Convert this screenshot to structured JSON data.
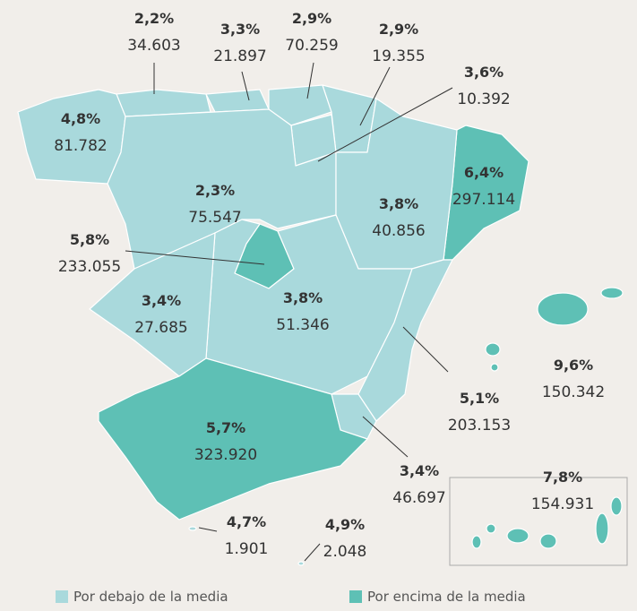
{
  "legend": [
    {
      "name": "Por debajo de la media",
      "color": "#a9d9dc"
    },
    {
      "name": "Por encima de la media",
      "color": "#5ec0b5"
    }
  ],
  "regions": [
    {
      "pct": "2,2%",
      "value": "34.603",
      "group": 0
    },
    {
      "pct": "3,3%",
      "value": "21.897",
      "group": 0
    },
    {
      "pct": "2,9%",
      "value": "70.259",
      "group": 0
    },
    {
      "pct": "2,9%",
      "value": "19.355",
      "group": 0
    },
    {
      "pct": "3,6%",
      "value": "10.392",
      "group": 0
    },
    {
      "pct": "4,8%",
      "value": "81.782",
      "group": 0
    },
    {
      "pct": "2,3%",
      "value": "75.547",
      "group": 0
    },
    {
      "pct": "6,4%",
      "value": "297.114",
      "group": 1
    },
    {
      "pct": "3,8%",
      "value": "40.856",
      "group": 0
    },
    {
      "pct": "5,8%",
      "value": "233.055",
      "group": 1
    },
    {
      "pct": "3,4%",
      "value": "27.685",
      "group": 0
    },
    {
      "pct": "3,8%",
      "value": "51.346",
      "group": 0
    },
    {
      "pct": "9,6%",
      "value": "150.342",
      "group": 1
    },
    {
      "pct": "5,1%",
      "value": "203.153",
      "group": 0
    },
    {
      "pct": "5,7%",
      "value": "323.920",
      "group": 1
    },
    {
      "pct": "3,4%",
      "value": "46.697",
      "group": 0
    },
    {
      "pct": "7,8%",
      "value": "154.931",
      "group": 1
    },
    {
      "pct": "4,7%",
      "value": "1.901",
      "group": 0
    },
    {
      "pct": "4,9%",
      "value": "2.048",
      "group": 0
    }
  ]
}
